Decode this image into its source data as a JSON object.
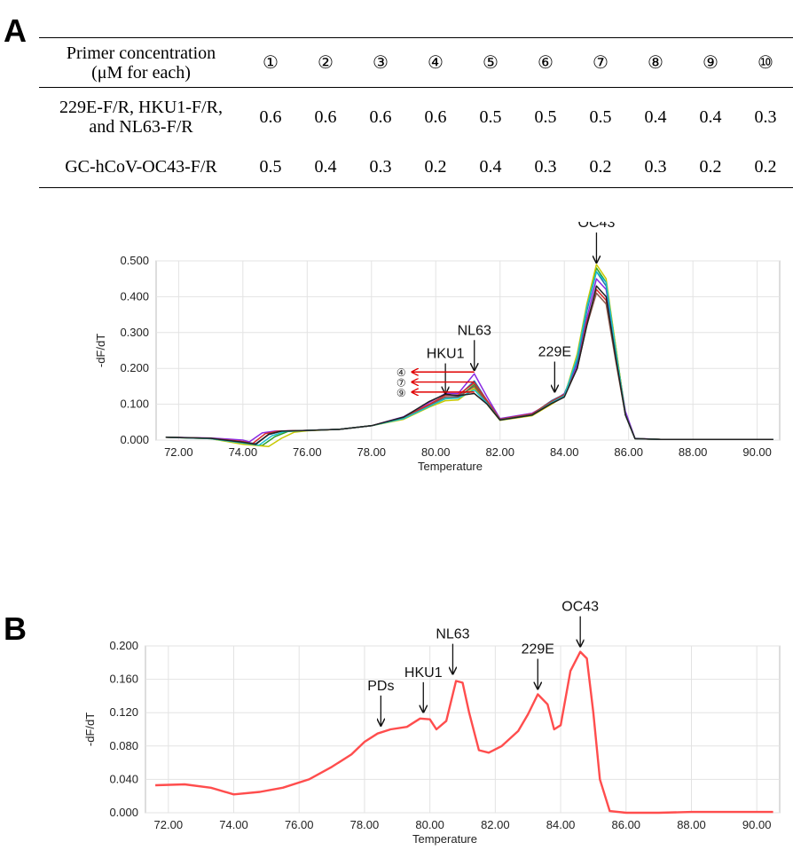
{
  "panels": {
    "a": "A",
    "b": "B"
  },
  "table": {
    "header_line1": "Primer concentration",
    "header_line2": "(μM for each)",
    "columns": [
      "①",
      "②",
      "③",
      "④",
      "⑤",
      "⑥",
      "⑦",
      "⑧",
      "⑨",
      "⑩"
    ],
    "rows": [
      {
        "label_line1": "229E-F/R, HKU1-F/R,",
        "label_line2": "and NL63-F/R",
        "values": [
          "0.6",
          "0.6",
          "0.6",
          "0.6",
          "0.5",
          "0.5",
          "0.5",
          "0.4",
          "0.4",
          "0.3"
        ]
      },
      {
        "label_line1": "GC-hCoV-OC43-F/R",
        "label_line2": "",
        "values": [
          "0.5",
          "0.4",
          "0.3",
          "0.2",
          "0.4",
          "0.3",
          "0.2",
          "0.3",
          "0.2",
          "0.2"
        ]
      }
    ]
  },
  "chart_data": [
    {
      "type": "line",
      "xlabel": "Temperature",
      "ylabel": "-dF/dT",
      "xlim": [
        71.3,
        90.7
      ],
      "ylim": [
        0,
        0.5
      ],
      "xticks": [
        "72.00",
        "74.00",
        "76.00",
        "78.00",
        "80.00",
        "82.00",
        "84.00",
        "86.00",
        "88.00",
        "90.00"
      ],
      "yticks": [
        "0.000",
        "0.100",
        "0.200",
        "0.300",
        "0.400",
        "0.500"
      ],
      "grid": true,
      "annotations": [
        {
          "text": "HKU1",
          "x": 80.3,
          "y": 0.115
        },
        {
          "text": "NL63",
          "x": 81.2,
          "y": 0.18
        },
        {
          "text": "229E",
          "x": 83.7,
          "y": 0.12
        },
        {
          "text": "OC43",
          "x": 85.0,
          "y": 0.48
        }
      ],
      "markers": [
        "④",
        "⑦",
        "⑨"
      ],
      "series": [
        {
          "color": "#8a2be2",
          "x": [
            71.6,
            73.0,
            74.0,
            74.2,
            74.6,
            75.0,
            76.0,
            77.0,
            78.0,
            79.0,
            79.8,
            80.3,
            80.7,
            81.2,
            81.6,
            82.0,
            83.0,
            83.6,
            84.0,
            84.4,
            84.7,
            85.0,
            85.3,
            85.6,
            85.9,
            86.2,
            87.0,
            90.5
          ],
          "y": [
            0.008,
            0.006,
            0.0,
            -0.005,
            0.02,
            0.025,
            0.027,
            0.03,
            0.04,
            0.065,
            0.105,
            0.13,
            0.13,
            0.185,
            0.12,
            0.06,
            0.075,
            0.105,
            0.13,
            0.21,
            0.34,
            0.45,
            0.42,
            0.25,
            0.08,
            0.005,
            0.002,
            0.002
          ]
        },
        {
          "color": "#1f77b4",
          "x": [
            71.6,
            73.0,
            74.0,
            74.4,
            74.8,
            75.2,
            76.0,
            77.0,
            78.0,
            79.0,
            79.8,
            80.3,
            80.7,
            81.2,
            81.6,
            82.0,
            83.0,
            83.6,
            84.0,
            84.4,
            84.7,
            85.0,
            85.3,
            85.6,
            85.9,
            86.2,
            87.0,
            90.5
          ],
          "y": [
            0.008,
            0.005,
            -0.005,
            -0.01,
            0.015,
            0.025,
            0.027,
            0.03,
            0.04,
            0.062,
            0.098,
            0.12,
            0.122,
            0.165,
            0.11,
            0.058,
            0.072,
            0.11,
            0.128,
            0.22,
            0.36,
            0.47,
            0.43,
            0.25,
            0.07,
            0.004,
            0.002,
            0.002
          ]
        },
        {
          "color": "#2ca02c",
          "x": [
            71.6,
            73.0,
            74.0,
            74.6,
            75.0,
            75.4,
            76.0,
            77.0,
            78.0,
            79.0,
            79.8,
            80.3,
            80.7,
            81.2,
            81.6,
            82.0,
            83.0,
            83.6,
            84.0,
            84.4,
            84.7,
            85.0,
            85.3,
            85.6,
            85.9,
            86.2,
            87.0,
            90.5
          ],
          "y": [
            0.008,
            0.004,
            -0.01,
            -0.015,
            0.01,
            0.024,
            0.027,
            0.03,
            0.04,
            0.06,
            0.095,
            0.115,
            0.118,
            0.155,
            0.105,
            0.056,
            0.07,
            0.105,
            0.125,
            0.23,
            0.37,
            0.48,
            0.44,
            0.26,
            0.07,
            0.004,
            0.002,
            0.002
          ]
        },
        {
          "color": "#c8c800",
          "x": [
            71.6,
            73.0,
            74.0,
            74.8,
            75.2,
            75.6,
            76.0,
            77.0,
            78.0,
            79.0,
            79.8,
            80.3,
            80.7,
            81.2,
            81.6,
            82.0,
            83.0,
            83.6,
            84.0,
            84.4,
            84.7,
            85.0,
            85.3,
            85.6,
            85.9,
            86.2,
            87.0,
            90.5
          ],
          "y": [
            0.008,
            0.004,
            -0.012,
            -0.018,
            0.005,
            0.022,
            0.026,
            0.03,
            0.04,
            0.058,
            0.092,
            0.11,
            0.112,
            0.145,
            0.1,
            0.055,
            0.068,
            0.1,
            0.122,
            0.24,
            0.38,
            0.49,
            0.45,
            0.26,
            0.07,
            0.004,
            0.002,
            0.002
          ]
        },
        {
          "color": "#d62728",
          "x": [
            71.6,
            73.0,
            74.0,
            74.3,
            74.7,
            75.1,
            76.0,
            77.0,
            78.0,
            79.0,
            79.8,
            80.3,
            80.7,
            81.2,
            81.6,
            82.0,
            83.0,
            83.6,
            84.0,
            84.4,
            84.7,
            85.0,
            85.3,
            85.6,
            85.9,
            86.2,
            87.0,
            90.5
          ],
          "y": [
            0.008,
            0.005,
            -0.004,
            -0.01,
            0.018,
            0.025,
            0.027,
            0.03,
            0.04,
            0.063,
            0.1,
            0.125,
            0.126,
            0.16,
            0.11,
            0.058,
            0.073,
            0.108,
            0.127,
            0.2,
            0.33,
            0.42,
            0.39,
            0.23,
            0.07,
            0.004,
            0.002,
            0.002
          ]
        },
        {
          "color": "#8c564b",
          "x": [
            71.6,
            73.0,
            74.0,
            74.4,
            74.8,
            75.2,
            76.0,
            77.0,
            78.0,
            79.0,
            79.8,
            80.3,
            80.7,
            81.2,
            81.6,
            82.0,
            83.0,
            83.6,
            84.0,
            84.4,
            84.7,
            85.0,
            85.3,
            85.6,
            85.9,
            86.2,
            87.0,
            90.5
          ],
          "y": [
            0.008,
            0.005,
            -0.006,
            -0.012,
            0.016,
            0.025,
            0.027,
            0.03,
            0.04,
            0.062,
            0.096,
            0.12,
            0.12,
            0.15,
            0.105,
            0.057,
            0.071,
            0.106,
            0.124,
            0.2,
            0.32,
            0.41,
            0.38,
            0.22,
            0.07,
            0.004,
            0.002,
            0.002
          ]
        },
        {
          "color": "#17becf",
          "x": [
            71.6,
            73.0,
            74.0,
            74.5,
            74.9,
            75.3,
            76.0,
            77.0,
            78.0,
            79.0,
            79.8,
            80.3,
            80.7,
            81.2,
            81.6,
            82.0,
            83.0,
            83.6,
            84.0,
            84.4,
            84.7,
            85.0,
            85.3,
            85.6,
            85.9,
            86.2,
            87.0,
            90.5
          ],
          "y": [
            0.008,
            0.004,
            -0.008,
            -0.014,
            0.012,
            0.024,
            0.027,
            0.03,
            0.04,
            0.06,
            0.094,
            0.116,
            0.117,
            0.14,
            0.102,
            0.056,
            0.07,
            0.104,
            0.123,
            0.23,
            0.37,
            0.47,
            0.44,
            0.25,
            0.07,
            0.004,
            0.002,
            0.002
          ]
        },
        {
          "color": "#222222",
          "x": [
            71.6,
            73.0,
            74.0,
            74.4,
            74.8,
            75.2,
            76.0,
            77.0,
            78.0,
            79.0,
            79.8,
            80.3,
            80.7,
            81.2,
            81.6,
            82.0,
            83.0,
            83.6,
            84.0,
            84.4,
            84.7,
            85.0,
            85.3,
            85.6,
            85.9,
            86.2,
            87.0,
            90.5
          ],
          "y": [
            0.008,
            0.005,
            -0.006,
            -0.012,
            0.016,
            0.025,
            0.027,
            0.03,
            0.04,
            0.064,
            0.108,
            0.128,
            0.124,
            0.13,
            0.1,
            0.056,
            0.07,
            0.102,
            0.12,
            0.2,
            0.32,
            0.43,
            0.4,
            0.23,
            0.07,
            0.004,
            0.002,
            0.002
          ]
        }
      ]
    },
    {
      "type": "line",
      "xlabel": "Temperature",
      "ylabel": "-dF/dT",
      "xlim": [
        71.3,
        90.7
      ],
      "ylim": [
        0,
        0.2
      ],
      "xticks": [
        "72.00",
        "74.00",
        "76.00",
        "78.00",
        "80.00",
        "82.00",
        "84.00",
        "86.00",
        "88.00",
        "90.00"
      ],
      "yticks": [
        "0.000",
        "0.040",
        "0.080",
        "0.120",
        "0.160",
        "0.200"
      ],
      "grid": true,
      "annotations": [
        {
          "text": "PDs",
          "x": 78.5,
          "y": 0.098
        },
        {
          "text": "HKU1",
          "x": 79.8,
          "y": 0.114
        },
        {
          "text": "NL63",
          "x": 80.7,
          "y": 0.16
        },
        {
          "text": "229E",
          "x": 83.3,
          "y": 0.142
        },
        {
          "text": "OC43",
          "x": 84.6,
          "y": 0.193
        }
      ],
      "series": [
        {
          "color": "#ff4d4d",
          "x": [
            71.6,
            72.5,
            73.3,
            74.0,
            74.8,
            75.5,
            76.3,
            77.0,
            77.6,
            78.0,
            78.4,
            78.8,
            79.3,
            79.7,
            80.0,
            80.2,
            80.5,
            80.8,
            81.0,
            81.2,
            81.5,
            81.8,
            82.2,
            82.7,
            83.0,
            83.3,
            83.6,
            83.8,
            84.0,
            84.3,
            84.6,
            84.8,
            85.0,
            85.2,
            85.5,
            86.0,
            87.0,
            88.0,
            90.5
          ],
          "y": [
            0.033,
            0.034,
            0.03,
            0.022,
            0.025,
            0.03,
            0.04,
            0.055,
            0.07,
            0.085,
            0.095,
            0.1,
            0.103,
            0.113,
            0.112,
            0.1,
            0.11,
            0.158,
            0.156,
            0.12,
            0.075,
            0.072,
            0.08,
            0.098,
            0.118,
            0.142,
            0.13,
            0.1,
            0.105,
            0.17,
            0.193,
            0.185,
            0.12,
            0.04,
            0.002,
            0.0,
            0.0,
            0.001,
            0.001
          ]
        }
      ]
    }
  ]
}
